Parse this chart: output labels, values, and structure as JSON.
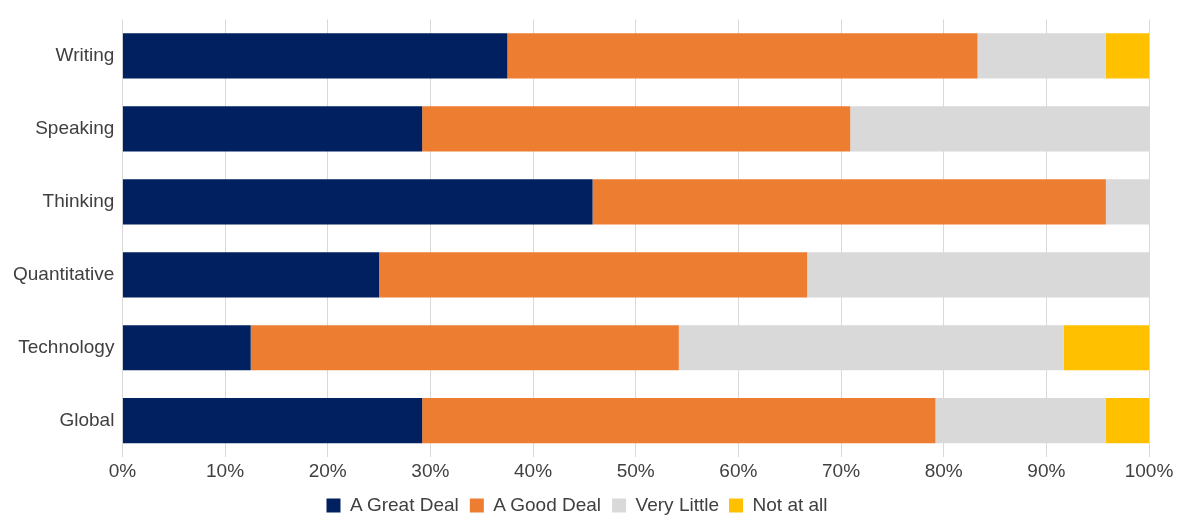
{
  "chart_data": {
    "type": "bar",
    "orientation": "horizontal",
    "stacked": true,
    "categories": [
      "Writing",
      "Speaking",
      "Thinking",
      "Quantitative",
      "Technology",
      "Global"
    ],
    "series": [
      {
        "name": "A Great Deal",
        "color": "#002060",
        "values": [
          37.5,
          29.2,
          45.8,
          25,
          12.5,
          29.2
        ]
      },
      {
        "name": "A Good Deal",
        "color": "#ed7d31",
        "values": [
          45.8,
          41.7,
          50,
          41.7,
          41.7,
          50
        ]
      },
      {
        "name": "Very Little",
        "color": "#d9d9d9",
        "values": [
          12.5,
          29.1,
          4.2,
          33.3,
          37.5,
          16.6
        ]
      },
      {
        "name": "Not at all",
        "color": "#ffc000",
        "values": [
          4.2,
          0,
          0,
          0,
          8.3,
          4.2
        ]
      }
    ],
    "xlim": [
      0,
      100
    ],
    "xticks": [
      {
        "value": 0,
        "label": "0%"
      },
      {
        "value": 10,
        "label": "10%"
      },
      {
        "value": 20,
        "label": "20%"
      },
      {
        "value": 30,
        "label": "30%"
      },
      {
        "value": 40,
        "label": "40%"
      },
      {
        "value": 50,
        "label": "50%"
      },
      {
        "value": 60,
        "label": "60%"
      },
      {
        "value": 70,
        "label": "70%"
      },
      {
        "value": 80,
        "label": "80%"
      },
      {
        "value": 90,
        "label": "90%"
      },
      {
        "value": 100,
        "label": "100%"
      }
    ],
    "grid": "x",
    "legend": "bottom"
  }
}
